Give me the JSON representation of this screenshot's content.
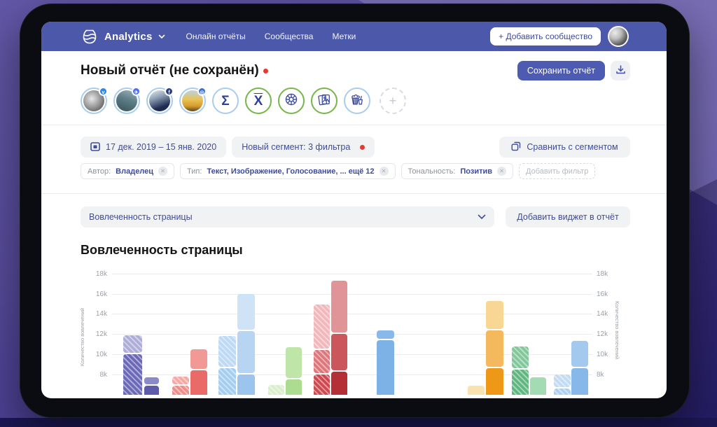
{
  "colors": {
    "navbar": "#4c59ab",
    "accent": "#3e4c9d",
    "save_button": "#4d5bb2",
    "red_dot": "#e23c30"
  },
  "nav": {
    "brand": "Analytics",
    "items": [
      {
        "label": "Онлайн отчёты"
      },
      {
        "label": "Сообщества"
      },
      {
        "label": "Метки"
      }
    ],
    "add_community_label": "+ Добавить сообщество"
  },
  "header": {
    "title": "Новый отчёт (не сохранён)",
    "unsaved_indicator": "red-dot",
    "save_label": "Сохранить отчёт",
    "download_icon": "download-icon"
  },
  "sources": [
    {
      "name": "community-avatar-crowd",
      "kind": "photo",
      "photo": "photo-gray",
      "ring": "blue",
      "badge": "vk-badge",
      "badge_color": "#2787f5",
      "badge_glyph": "v"
    },
    {
      "name": "community-avatar-waterfall",
      "kind": "photo",
      "photo": "photo-teal",
      "ring": "blue",
      "badge": "social-badge",
      "badge_color": "#4c6ef5",
      "badge_glyph": "✈"
    },
    {
      "name": "community-avatar-mountain",
      "kind": "photo",
      "photo": "photo-navy",
      "ring": "blue",
      "badge": "fb-badge",
      "badge_color": "#2c3e8c",
      "badge_glyph": "f"
    },
    {
      "name": "community-avatar-van",
      "kind": "photo",
      "photo": "photo-van",
      "ring": "blue",
      "badge": "ig-badge",
      "badge_color": "#3b6fd4",
      "badge_glyph": "◎"
    },
    {
      "name": "sigma-icon",
      "kind": "glyph",
      "ring": "blue",
      "glyph": "Σ"
    },
    {
      "name": "xbar-icon",
      "kind": "glyph",
      "ring": "green",
      "glyph": "X",
      "overline": true
    },
    {
      "name": "wheel-icon",
      "kind": "svg",
      "ring": "green",
      "svg": "wheel"
    },
    {
      "name": "photos-icon",
      "kind": "svg",
      "ring": "green",
      "svg": "photos"
    },
    {
      "name": "popcorn-icon",
      "kind": "svg",
      "ring": "blue",
      "svg": "popcorn"
    },
    {
      "name": "add-source-button",
      "kind": "add",
      "glyph": "+"
    }
  ],
  "controls": {
    "date_range": "17 дек. 2019 – 15 янв. 2020",
    "segment_label": "Новый сегмент: 3 фильтра",
    "segment_indicator": "red-dot",
    "compare_label": "Сравнить с сегментом",
    "filters": [
      {
        "label": "Автор:",
        "value": "Владелец"
      },
      {
        "label": "Тип:",
        "value": "Текст, Изображение, Голосование, ... ещё 12"
      },
      {
        "label": "Тональность:",
        "value": "Позитив"
      }
    ],
    "add_filter_label": "Добавить фильтр"
  },
  "widget_bar": {
    "selected": "Вовлеченность страницы",
    "add_label": "Добавить виджет в отчёт"
  },
  "section": {
    "title": "Вовлеченность страницы"
  },
  "chart_data": {
    "type": "bar",
    "stacked": true,
    "title": "Вовлеченность страницы",
    "ylabel_left": "Количество вовлечений",
    "ylabel_right": "Количество вовлечений",
    "grid": true,
    "unit": "k engagements",
    "ylim": [
      6.0,
      18.6
    ],
    "yticks": [
      {
        "label": "18k",
        "value": 18
      },
      {
        "label": "16k",
        "value": 16
      },
      {
        "label": "14k",
        "value": 14
      },
      {
        "label": "12k",
        "value": 12
      },
      {
        "label": "10k",
        "value": 10
      },
      {
        "label": "8k",
        "value": 8
      }
    ],
    "note": "values in thousands, bars clipped below 6k by screen edge; hatched = comparison period",
    "bars": [
      {
        "group": 1,
        "x": 16,
        "w": 27,
        "hatch": true,
        "segments": [
          {
            "top": 11.9,
            "color": "#aeadd8"
          },
          {
            "top": 10.0,
            "color": "#6b69b5"
          }
        ]
      },
      {
        "group": 1,
        "x": 46,
        "w": 21,
        "hatch": false,
        "segments": [
          {
            "top": 7.7,
            "color": "#8c8ac6"
          },
          {
            "top": 6.9,
            "color": "#5e5caa"
          }
        ]
      },
      {
        "group": 2,
        "x": 86,
        "w": 24,
        "hatch": true,
        "segments": [
          {
            "top": 7.8,
            "color": "#f4a9a5"
          },
          {
            "top": 6.9,
            "color": "#ef8d89"
          }
        ]
      },
      {
        "group": 2,
        "x": 112,
        "w": 24,
        "hatch": false,
        "segments": [
          {
            "top": 10.5,
            "color": "#f19995"
          },
          {
            "top": 8.4,
            "color": "#e96a66"
          }
        ]
      },
      {
        "group": 3,
        "x": 152,
        "w": 25,
        "hatch": true,
        "segments": [
          {
            "top": 11.8,
            "color": "#bdd9f4"
          },
          {
            "top": 8.6,
            "color": "#a5cdf1"
          }
        ]
      },
      {
        "group": 3,
        "x": 179,
        "w": 25,
        "hatch": false,
        "segments": [
          {
            "top": 16.0,
            "color": "#cfe3f7"
          },
          {
            "top": 12.3,
            "color": "#b7d5f3"
          },
          {
            "top": 8.0,
            "color": "#9cc5ee"
          }
        ]
      },
      {
        "group": 4,
        "x": 223,
        "w": 23,
        "hatch": true,
        "segments": [
          {
            "top": 7.0,
            "color": "#d9eecb"
          }
        ]
      },
      {
        "group": 4,
        "x": 248,
        "w": 23,
        "hatch": false,
        "segments": [
          {
            "top": 10.7,
            "color": "#c0e5a9"
          },
          {
            "top": 7.5,
            "color": "#abdc90"
          }
        ]
      },
      {
        "group": 5,
        "x": 288,
        "w": 23,
        "hatch": true,
        "segments": [
          {
            "top": 14.9,
            "color": "#f2b7ba"
          },
          {
            "top": 10.4,
            "color": "#dd777b"
          },
          {
            "top": 8.0,
            "color": "#cd4950"
          }
        ]
      },
      {
        "group": 5,
        "x": 313,
        "w": 23,
        "hatch": false,
        "segments": [
          {
            "top": 17.3,
            "color": "#e09498"
          },
          {
            "top": 12.0,
            "color": "#cb565c"
          },
          {
            "top": 8.3,
            "color": "#b52f36"
          }
        ]
      },
      {
        "group": 6,
        "x": 378,
        "w": 25,
        "hatch": false,
        "segments": [
          {
            "top": 12.35,
            "color": "#88b9ea"
          },
          {
            "top": 11.4,
            "color": "#7db2e7"
          }
        ]
      },
      {
        "group": 7,
        "x": 508,
        "w": 24,
        "hatch": false,
        "segments": [
          {
            "top": 6.9,
            "color": "#f8e3b0"
          }
        ]
      },
      {
        "group": 7,
        "x": 534,
        "w": 25,
        "hatch": false,
        "segments": [
          {
            "top": 15.3,
            "color": "#f8d795"
          },
          {
            "top": 12.35,
            "color": "#f4b95d"
          },
          {
            "top": 8.6,
            "color": "#ef9717"
          }
        ]
      },
      {
        "group": 8,
        "x": 571,
        "w": 24,
        "hatch": true,
        "segments": [
          {
            "top": 10.8,
            "color": "#82c79a"
          },
          {
            "top": 8.5,
            "color": "#5eb77f"
          }
        ]
      },
      {
        "group": 8,
        "x": 597,
        "w": 23,
        "hatch": false,
        "segments": [
          {
            "top": 7.7,
            "color": "#a3dbb2"
          }
        ]
      },
      {
        "group": 9,
        "x": 631,
        "w": 24,
        "hatch": true,
        "segments": [
          {
            "top": 8.0,
            "color": "#c3dcf4"
          },
          {
            "top": 6.6,
            "color": "#aed0f0"
          }
        ]
      },
      {
        "group": 9,
        "x": 656,
        "w": 24,
        "hatch": false,
        "segments": [
          {
            "top": 11.3,
            "color": "#a3c9ef"
          },
          {
            "top": 8.6,
            "color": "#88b8ea"
          }
        ]
      }
    ]
  }
}
